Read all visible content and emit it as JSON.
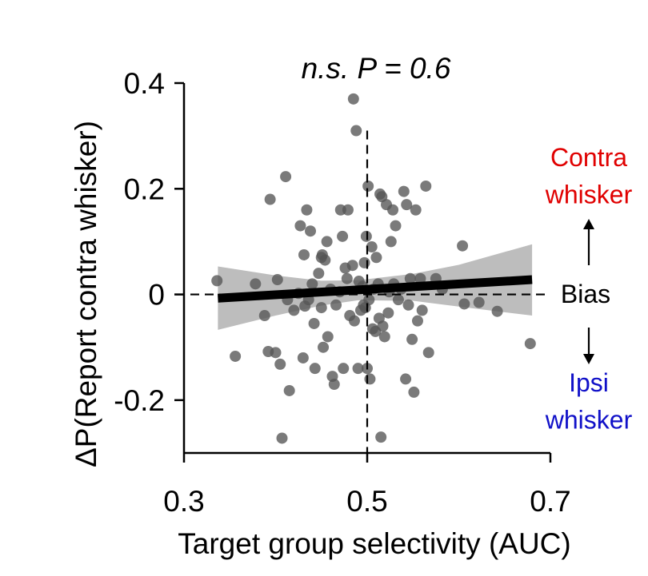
{
  "chart_data": {
    "type": "scatter",
    "title": "n.s. P = 0.6",
    "xlabel": "Target group selectivity (AUC)",
    "ylabel": "ΔP(Report contra whisker)",
    "xlim": [
      0.3,
      0.7
    ],
    "ylim": [
      -0.3,
      0.4
    ],
    "xticks": [
      "0.3",
      "0.5",
      "0.7"
    ],
    "yticks": [
      "0.4",
      "0.2",
      "0",
      "-0.2"
    ],
    "grid": false,
    "reference_lines": {
      "vertical_x": 0.5,
      "horizontal_y": 0
    },
    "fit_line": {
      "x": [
        0.337,
        0.68
      ],
      "y": [
        -0.007,
        0.028
      ]
    },
    "confidence_band": {
      "x": [
        0.337,
        0.4,
        0.45,
        0.49,
        0.55,
        0.6,
        0.68
      ],
      "upper": [
        0.053,
        0.036,
        0.026,
        0.027,
        0.039,
        0.056,
        0.095
      ],
      "lower": [
        -0.067,
        -0.04,
        -0.021,
        -0.011,
        -0.012,
        -0.023,
        -0.04
      ]
    },
    "annotations": {
      "contra": "Contra\nwhisker",
      "ipsi": "Ipsi\nwhisker",
      "bias": "Bias"
    },
    "colors": {
      "points": "#555555",
      "band": "#bdbdbd",
      "fit": "#000000",
      "contra": "#e00000",
      "ipsi": "#1010c8"
    },
    "points": [
      [
        0.336,
        0.026
      ],
      [
        0.356,
        -0.117
      ],
      [
        0.378,
        0.02
      ],
      [
        0.388,
        -0.04
      ],
      [
        0.392,
        -0.108
      ],
      [
        0.394,
        0.18
      ],
      [
        0.4,
        -0.11
      ],
      [
        0.402,
        0.028
      ],
      [
        0.405,
        -0.132
      ],
      [
        0.407,
        -0.272
      ],
      [
        0.411,
        0.223
      ],
      [
        0.413,
        -0.01
      ],
      [
        0.415,
        -0.182
      ],
      [
        0.42,
        -0.03
      ],
      [
        0.425,
        0.002
      ],
      [
        0.427,
        0.13
      ],
      [
        0.43,
        -0.12
      ],
      [
        0.431,
        0.075
      ],
      [
        0.432,
        -0.022
      ],
      [
        0.434,
        0.16
      ],
      [
        0.436,
        -0.01
      ],
      [
        0.438,
        0.12
      ],
      [
        0.44,
        0.02
      ],
      [
        0.442,
        -0.055
      ],
      [
        0.443,
        -0.14
      ],
      [
        0.447,
        0.04
      ],
      [
        0.45,
        0.07
      ],
      [
        0.45,
        -0.025
      ],
      [
        0.451,
        0.075
      ],
      [
        0.452,
        -0.1
      ],
      [
        0.454,
        0.065
      ],
      [
        0.456,
        0.1
      ],
      [
        0.457,
        -0.08
      ],
      [
        0.46,
        0.01
      ],
      [
        0.462,
        -0.155
      ],
      [
        0.464,
        -0.17
      ],
      [
        0.466,
        -0.02
      ],
      [
        0.47,
        0.005
      ],
      [
        0.471,
        0.16
      ],
      [
        0.473,
        0.11
      ],
      [
        0.474,
        -0.14
      ],
      [
        0.476,
        0.05
      ],
      [
        0.478,
        0.03
      ],
      [
        0.479,
        0.16
      ],
      [
        0.481,
        -0.04
      ],
      [
        0.484,
        0.055
      ],
      [
        0.485,
        0.37
      ],
      [
        0.486,
        -0.05
      ],
      [
        0.488,
        0.31
      ],
      [
        0.49,
        -0.14
      ],
      [
        0.491,
        0.025
      ],
      [
        0.493,
        -0.03
      ],
      [
        0.495,
        0.015
      ],
      [
        0.496,
        -0.02
      ],
      [
        0.497,
        0.06
      ],
      [
        0.498,
        -0.025
      ],
      [
        0.499,
        0.11
      ],
      [
        0.5,
        -0.14
      ],
      [
        0.501,
        0.205
      ],
      [
        0.502,
        -0.01
      ],
      [
        0.503,
        -0.16
      ],
      [
        0.505,
        0.09
      ],
      [
        0.506,
        -0.065
      ],
      [
        0.507,
        0.01
      ],
      [
        0.509,
        -0.07
      ],
      [
        0.51,
        0.07
      ],
      [
        0.512,
        0.02
      ],
      [
        0.513,
        -0.045
      ],
      [
        0.514,
        0.19
      ],
      [
        0.515,
        -0.27
      ],
      [
        0.516,
        0.185
      ],
      [
        0.517,
        -0.06
      ],
      [
        0.519,
        -0.08
      ],
      [
        0.521,
        0.17
      ],
      [
        0.523,
        -0.035
      ],
      [
        0.524,
        0.005
      ],
      [
        0.526,
        0.1
      ],
      [
        0.528,
        0.16
      ],
      [
        0.529,
        0.02
      ],
      [
        0.531,
        0.13
      ],
      [
        0.534,
        -0.01
      ],
      [
        0.537,
        0.01
      ],
      [
        0.54,
        0.195
      ],
      [
        0.542,
        -0.16
      ],
      [
        0.543,
        0.17
      ],
      [
        0.545,
        -0.02
      ],
      [
        0.547,
        0.03
      ],
      [
        0.549,
        -0.085
      ],
      [
        0.551,
        -0.185
      ],
      [
        0.553,
        0.16
      ],
      [
        0.555,
        -0.05
      ],
      [
        0.558,
        0.03
      ],
      [
        0.56,
        -0.03
      ],
      [
        0.564,
        0.205
      ],
      [
        0.567,
        -0.11
      ],
      [
        0.575,
        0.03
      ],
      [
        0.582,
        0.01
      ],
      [
        0.604,
        0.092
      ],
      [
        0.606,
        -0.018
      ],
      [
        0.622,
        -0.015
      ],
      [
        0.642,
        -0.032
      ],
      [
        0.678,
        -0.093
      ]
    ]
  }
}
